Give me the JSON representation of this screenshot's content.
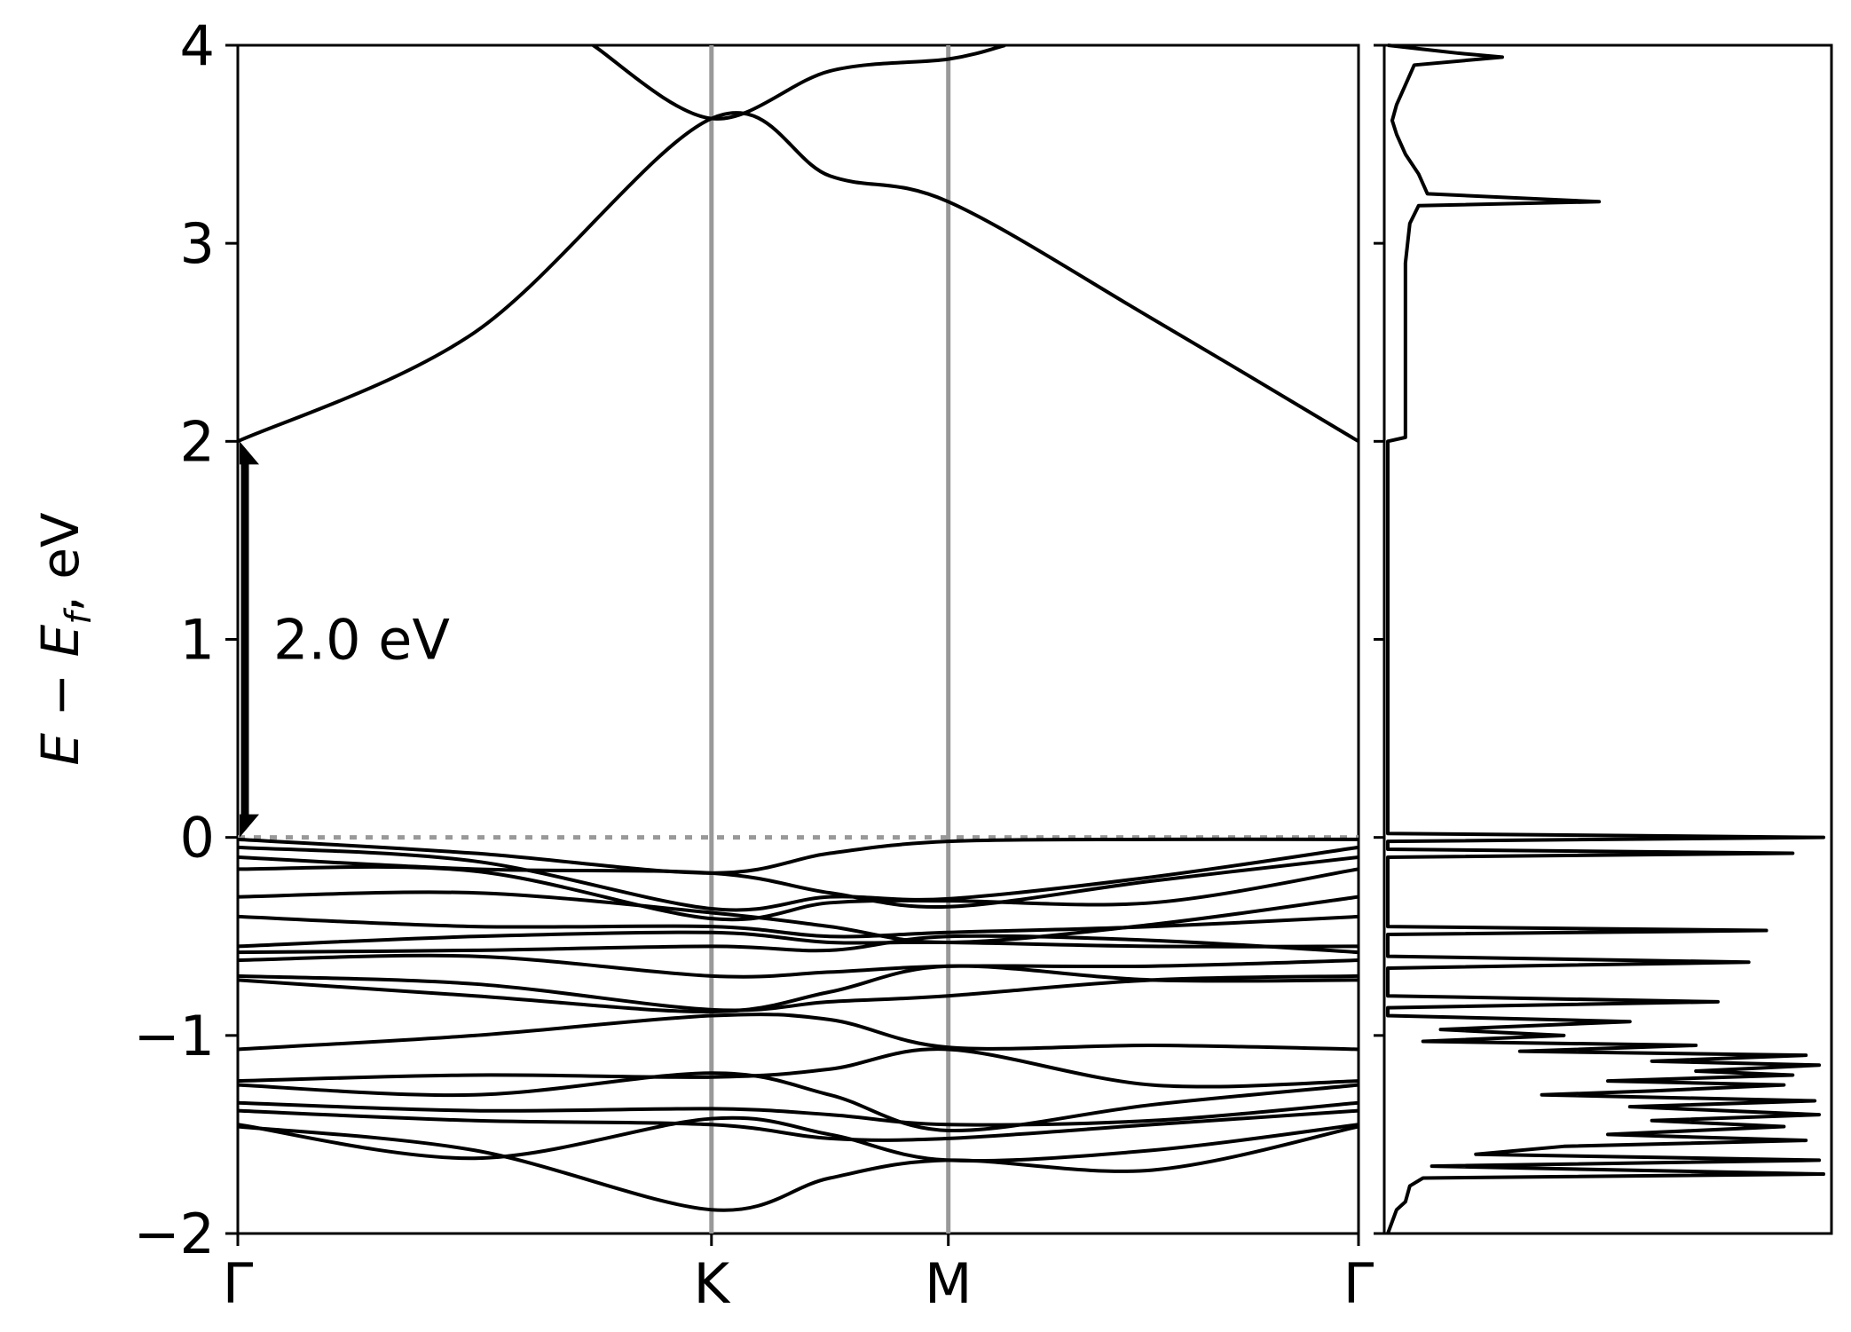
{
  "chart_data": [
    {
      "type": "line",
      "panel": "band-structure",
      "ylabel": "E − E_f, eV",
      "ylabel_parts": {
        "e": "E",
        "minus": " − ",
        "ef": "E",
        "ef_sub": "f",
        "unit": ", eV"
      },
      "ylim": [
        -2,
        4
      ],
      "yticks": [
        -2,
        -1,
        0,
        1,
        2,
        3,
        4
      ],
      "ytick_labels": [
        "−2",
        "−1",
        "0",
        "1",
        "2",
        "3",
        "4"
      ],
      "kpath_positions": [
        0,
        1.0,
        1.5,
        2.366
      ],
      "kpath_labels": [
        "Γ",
        "K",
        "M",
        "Γ"
      ],
      "fermi_level": 0,
      "gap": {
        "from": 0.0,
        "to": 2.0,
        "label": "2.0 eV"
      },
      "colors": {
        "bands": "#000000",
        "kpath_lines": "#999999",
        "fermi_line": "#999999"
      },
      "bands": [
        {
          "x": [
            0,
            0.5,
            1.0,
            1.25,
            1.5,
            1.93,
            2.366
          ],
          "y": [
            2.0,
            2.55,
            3.63,
            3.34,
            3.21,
            2.62,
            2.0
          ]
        },
        {
          "x": [
            0.75,
            1.0,
            1.25,
            1.5,
            1.62
          ],
          "y": [
            4.0,
            3.63,
            3.87,
            3.93,
            4.0
          ]
        },
        {
          "x": [
            0,
            0.5,
            1.0,
            1.25,
            1.5,
            1.93,
            2.366
          ],
          "y": [
            -0.01,
            -0.08,
            -0.18,
            -0.08,
            -0.02,
            -0.01,
            -0.01
          ]
        },
        {
          "x": [
            0,
            0.5,
            1.0,
            1.25,
            1.5,
            1.93,
            2.366
          ],
          "y": [
            -0.05,
            -0.12,
            -0.36,
            -0.3,
            -0.31,
            -0.2,
            -0.05
          ]
        },
        {
          "x": [
            0,
            0.5,
            1.0,
            1.25,
            1.5,
            1.93,
            2.366
          ],
          "y": [
            -0.1,
            -0.16,
            -0.18,
            -0.28,
            -0.35,
            -0.22,
            -0.1
          ]
        },
        {
          "x": [
            0,
            0.5,
            1.0,
            1.25,
            1.5,
            1.93,
            2.366
          ],
          "y": [
            -0.16,
            -0.17,
            -0.41,
            -0.33,
            -0.32,
            -0.33,
            -0.16
          ]
        },
        {
          "x": [
            0,
            0.5,
            1.0,
            1.25,
            1.5,
            1.93,
            2.366
          ],
          "y": [
            -0.3,
            -0.28,
            -0.38,
            -0.45,
            -0.53,
            -0.44,
            -0.3
          ]
        },
        {
          "x": [
            0,
            0.5,
            1.0,
            1.25,
            1.5,
            1.93,
            2.366
          ],
          "y": [
            -0.4,
            -0.45,
            -0.45,
            -0.5,
            -0.48,
            -0.45,
            -0.4
          ]
        },
        {
          "x": [
            0,
            0.5,
            1.0,
            1.25,
            1.5,
            1.93,
            2.366
          ],
          "y": [
            -0.55,
            -0.5,
            -0.48,
            -0.53,
            -0.53,
            -0.55,
            -0.55
          ]
        },
        {
          "x": [
            0,
            0.5,
            1.0,
            1.25,
            1.5,
            1.93,
            2.366
          ],
          "y": [
            -0.58,
            -0.57,
            -0.55,
            -0.57,
            -0.5,
            -0.52,
            -0.58
          ]
        },
        {
          "x": [
            0,
            0.5,
            1.0,
            1.25,
            1.5,
            1.93,
            2.366
          ],
          "y": [
            -0.62,
            -0.6,
            -0.7,
            -0.68,
            -0.65,
            -0.65,
            -0.62
          ]
        },
        {
          "x": [
            0,
            0.5,
            1.0,
            1.25,
            1.5,
            1.93,
            2.366
          ],
          "y": [
            -0.7,
            -0.74,
            -0.87,
            -0.83,
            -0.8,
            -0.72,
            -0.7
          ]
        },
        {
          "x": [
            0,
            0.5,
            1.0,
            1.25,
            1.5,
            1.93,
            2.366
          ],
          "y": [
            -0.72,
            -0.8,
            -0.88,
            -0.78,
            -0.65,
            -0.72,
            -0.72
          ]
        },
        {
          "x": [
            0,
            0.5,
            1.0,
            1.25,
            1.5,
            1.93,
            2.366
          ],
          "y": [
            -1.07,
            -1.0,
            -0.9,
            -0.92,
            -1.06,
            -1.05,
            -1.07
          ]
        },
        {
          "x": [
            0,
            0.5,
            1.0,
            1.25,
            1.5,
            1.93,
            2.366
          ],
          "y": [
            -1.23,
            -1.2,
            -1.21,
            -1.17,
            -1.07,
            -1.25,
            -1.23
          ]
        },
        {
          "x": [
            0,
            0.5,
            1.0,
            1.25,
            1.5,
            1.93,
            2.366
          ],
          "y": [
            -1.25,
            -1.3,
            -1.19,
            -1.3,
            -1.48,
            -1.35,
            -1.25
          ]
        },
        {
          "x": [
            0,
            0.5,
            1.0,
            1.25,
            1.5,
            1.93,
            2.366
          ],
          "y": [
            -1.34,
            -1.38,
            -1.37,
            -1.4,
            -1.45,
            -1.43,
            -1.34
          ]
        },
        {
          "x": [
            0,
            0.5,
            1.0,
            1.25,
            1.5,
            1.93,
            2.366
          ],
          "y": [
            -1.38,
            -1.43,
            -1.45,
            -1.52,
            -1.52,
            -1.45,
            -1.38
          ]
        },
        {
          "x": [
            0,
            0.5,
            1.0,
            1.25,
            1.5,
            1.93,
            2.366
          ],
          "y": [
            -1.45,
            -1.62,
            -1.42,
            -1.5,
            -1.63,
            -1.58,
            -1.45
          ]
        },
        {
          "x": [
            0,
            0.5,
            1.0,
            1.25,
            1.5,
            1.93,
            2.366
          ],
          "y": [
            -1.46,
            -1.58,
            -1.88,
            -1.72,
            -1.63,
            -1.68,
            -1.46
          ]
        }
      ]
    },
    {
      "type": "line",
      "panel": "density-of-states",
      "ylim": [
        -2,
        4
      ],
      "xlim": [
        0,
        1
      ],
      "dos": [
        {
          "e": 4.0,
          "v": 0.0
        },
        {
          "e": 3.98,
          "v": 0.08
        },
        {
          "e": 3.96,
          "v": 0.16
        },
        {
          "e": 3.94,
          "v": 0.26
        },
        {
          "e": 3.9,
          "v": 0.06
        },
        {
          "e": 3.8,
          "v": 0.04
        },
        {
          "e": 3.7,
          "v": 0.02
        },
        {
          "e": 3.62,
          "v": 0.01
        },
        {
          "e": 3.55,
          "v": 0.02
        },
        {
          "e": 3.45,
          "v": 0.04
        },
        {
          "e": 3.35,
          "v": 0.07
        },
        {
          "e": 3.25,
          "v": 0.09
        },
        {
          "e": 3.21,
          "v": 0.48
        },
        {
          "e": 3.19,
          "v": 0.07
        },
        {
          "e": 3.1,
          "v": 0.05
        },
        {
          "e": 2.9,
          "v": 0.04
        },
        {
          "e": 2.5,
          "v": 0.04
        },
        {
          "e": 2.1,
          "v": 0.04
        },
        {
          "e": 2.02,
          "v": 0.04
        },
        {
          "e": 2.0,
          "v": 0.0
        },
        {
          "e": 1.0,
          "v": 0.0
        },
        {
          "e": 0.02,
          "v": 0.0
        },
        {
          "e": 0.0,
          "v": 0.99
        },
        {
          "e": -0.02,
          "v": 0.0
        },
        {
          "e": -0.06,
          "v": 0.0
        },
        {
          "e": -0.08,
          "v": 0.92
        },
        {
          "e": -0.1,
          "v": 0.0
        },
        {
          "e": -0.45,
          "v": 0.0
        },
        {
          "e": -0.47,
          "v": 0.86
        },
        {
          "e": -0.49,
          "v": 0.0
        },
        {
          "e": -0.6,
          "v": 0.0
        },
        {
          "e": -0.63,
          "v": 0.82
        },
        {
          "e": -0.66,
          "v": 0.0
        },
        {
          "e": -0.8,
          "v": 0.0
        },
        {
          "e": -0.83,
          "v": 0.75
        },
        {
          "e": -0.86,
          "v": 0.0
        },
        {
          "e": -0.9,
          "v": 0.0
        },
        {
          "e": -0.93,
          "v": 0.55
        },
        {
          "e": -0.97,
          "v": 0.12
        },
        {
          "e": -1.0,
          "v": 0.4
        },
        {
          "e": -1.03,
          "v": 0.08
        },
        {
          "e": -1.05,
          "v": 0.7
        },
        {
          "e": -1.08,
          "v": 0.3
        },
        {
          "e": -1.1,
          "v": 0.95
        },
        {
          "e": -1.13,
          "v": 0.6
        },
        {
          "e": -1.15,
          "v": 0.98
        },
        {
          "e": -1.18,
          "v": 0.7
        },
        {
          "e": -1.2,
          "v": 0.92
        },
        {
          "e": -1.23,
          "v": 0.5
        },
        {
          "e": -1.25,
          "v": 0.9
        },
        {
          "e": -1.28,
          "v": 0.6
        },
        {
          "e": -1.3,
          "v": 0.35
        },
        {
          "e": -1.33,
          "v": 0.97
        },
        {
          "e": -1.36,
          "v": 0.55
        },
        {
          "e": -1.4,
          "v": 0.98
        },
        {
          "e": -1.43,
          "v": 0.6
        },
        {
          "e": -1.46,
          "v": 0.9
        },
        {
          "e": -1.5,
          "v": 0.5
        },
        {
          "e": -1.53,
          "v": 0.95
        },
        {
          "e": -1.56,
          "v": 0.4
        },
        {
          "e": -1.6,
          "v": 0.2
        },
        {
          "e": -1.63,
          "v": 0.98
        },
        {
          "e": -1.66,
          "v": 0.1
        },
        {
          "e": -1.7,
          "v": 0.99
        },
        {
          "e": -1.72,
          "v": 0.08
        },
        {
          "e": -1.76,
          "v": 0.05
        },
        {
          "e": -1.84,
          "v": 0.04
        },
        {
          "e": -1.88,
          "v": 0.02
        },
        {
          "e": -2.0,
          "v": 0.0
        }
      ]
    }
  ]
}
